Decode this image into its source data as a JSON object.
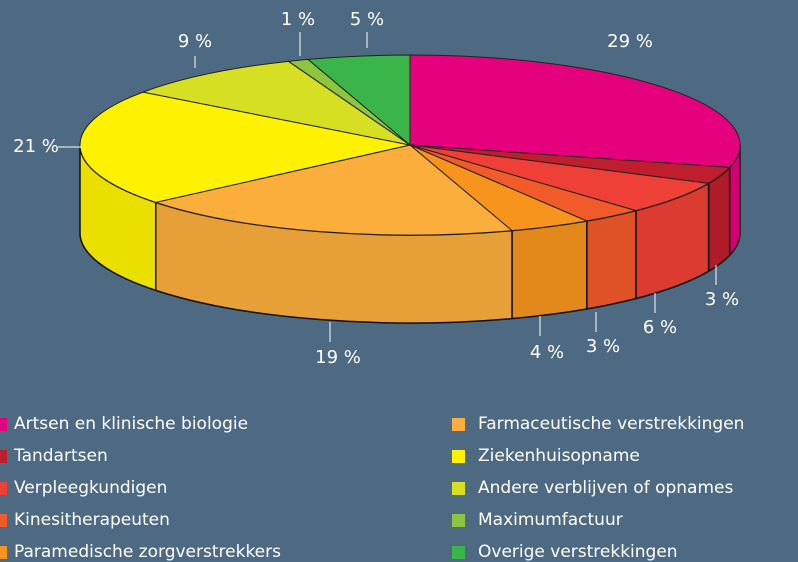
{
  "chart_data": {
    "type": "pie",
    "categories": [
      "Artsen en klinische biologie",
      "Tandartsen",
      "Verpleegkundigen",
      "Kinesitherapeuten",
      "Paramedische zorgverstrekkers",
      "Farmaceutische verstrekkingen",
      "Ziekenhuisopname",
      "Andere verblijven of opnames",
      "Maximumfactuur",
      "Overige verstrekkingen"
    ],
    "values": [
      29,
      3,
      6,
      3,
      4,
      19,
      21,
      9,
      1,
      5
    ],
    "value_labels": [
      "29 %",
      "3 %",
      "6 %",
      "3 %",
      "4 %",
      "19 %",
      "21 %",
      "9 %",
      "1 %",
      "5 %"
    ],
    "colors": [
      "#e5007d",
      "#be1e2d",
      "#ee4036",
      "#f15a29",
      "#f7941d",
      "#fbae3c",
      "#fff200",
      "#d7df23",
      "#8cc63f",
      "#39b54a"
    ]
  }
}
